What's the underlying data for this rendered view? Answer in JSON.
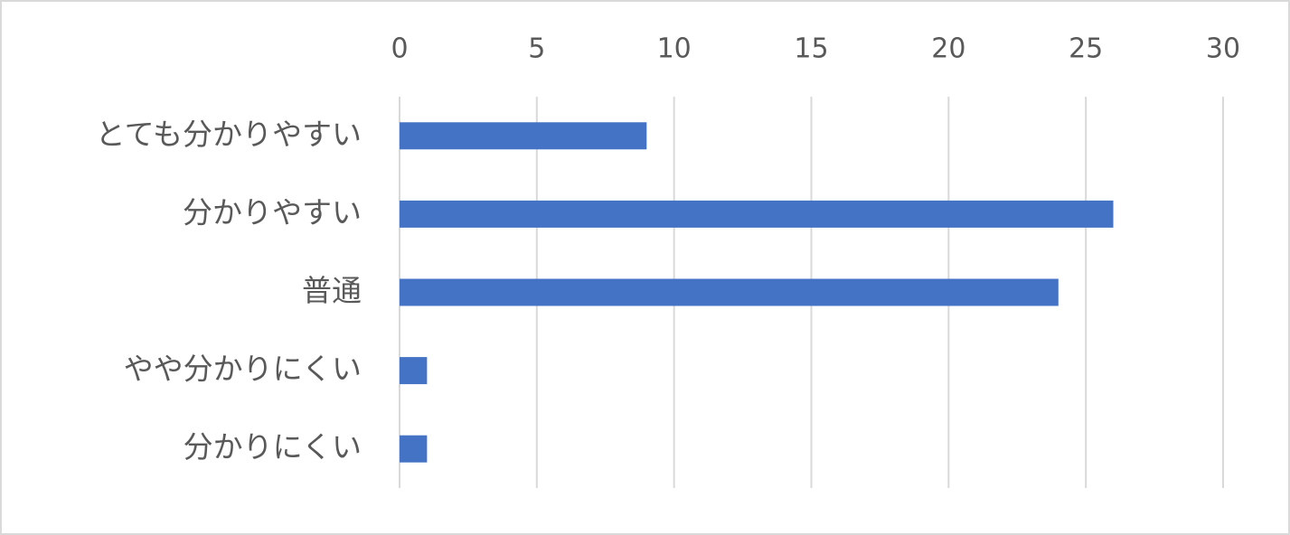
{
  "chart_data": {
    "type": "bar",
    "orientation": "horizontal",
    "categories": [
      "とても分かりやすい",
      "分かりやすい",
      "普通",
      "やや分かりにくい",
      "分かりにくい"
    ],
    "values": [
      9,
      26,
      24,
      1,
      1
    ],
    "color": "#4472c4",
    "xlim": [
      0,
      30
    ],
    "xticks": [
      0,
      5,
      10,
      15,
      20,
      25,
      30
    ],
    "grid": true
  }
}
